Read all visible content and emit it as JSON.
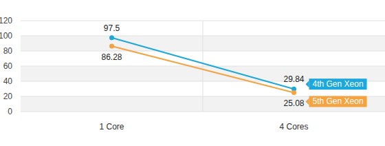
{
  "chart_data": {
    "type": "line",
    "categories": [
      "1 Core",
      "4 Cores"
    ],
    "series": [
      {
        "name": "4th Gen Xeon",
        "color": "#1ca8dd",
        "values": [
          97.5,
          29.84
        ],
        "marker": "circle"
      },
      {
        "name": "5th Gen Xeon",
        "color": "#f4a340",
        "values": [
          86.28,
          25.08
        ],
        "marker": "circle"
      }
    ],
    "ylim": [
      0,
      120
    ],
    "yticks": [
      0,
      20,
      40,
      60,
      80,
      100,
      120
    ],
    "grid": true,
    "data_labels": true,
    "legend": "right"
  }
}
